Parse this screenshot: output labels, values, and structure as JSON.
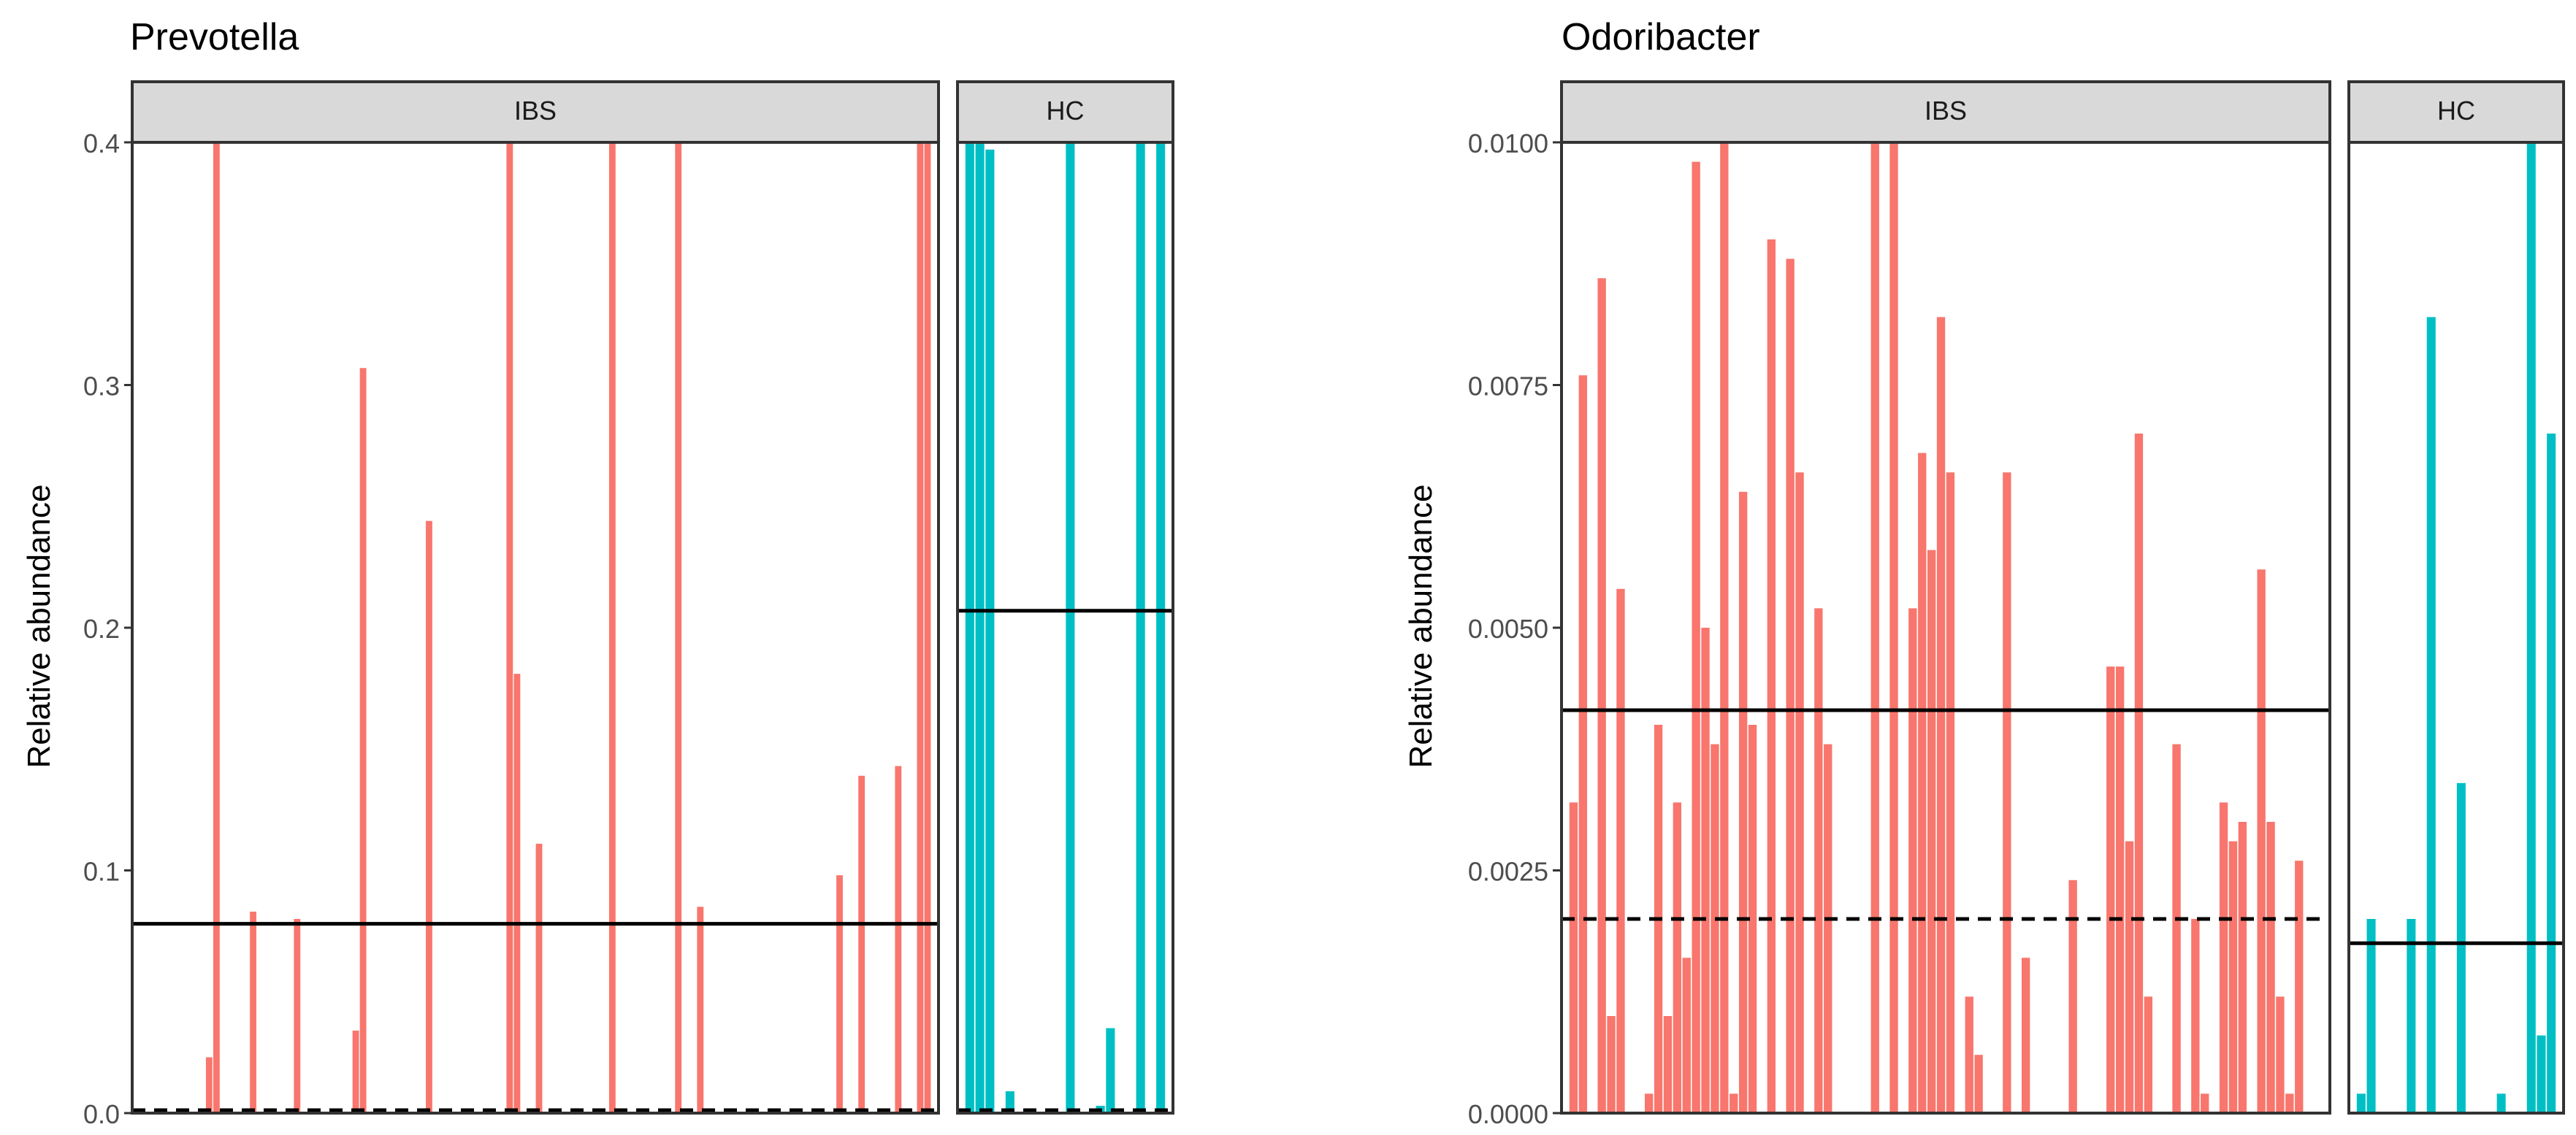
{
  "chart_data": [
    {
      "type": "bar",
      "title": "Prevotella",
      "ylabel": "Relative abundance",
      "xlabel": "",
      "ylim": [
        0,
        0.4
      ],
      "yticks": [
        "0.0",
        "0.1",
        "0.2",
        "0.3",
        "0.4"
      ],
      "facets": [
        {
          "label": "IBS",
          "color": "#F8766D",
          "n_slots": 108,
          "bars": [
            {
              "i": 9,
              "value": 0.023
            },
            {
              "i": 10,
              "value": 0.4
            },
            {
              "i": 15,
              "value": 0.083
            },
            {
              "i": 21,
              "value": 0.08
            },
            {
              "i": 29,
              "value": 0.034
            },
            {
              "i": 30,
              "value": 0.307
            },
            {
              "i": 39,
              "value": 0.244
            },
            {
              "i": 50,
              "value": 0.4
            },
            {
              "i": 51,
              "value": 0.181
            },
            {
              "i": 54,
              "value": 0.111
            },
            {
              "i": 59,
              "value": 0.002
            },
            {
              "i": 64,
              "value": 0.4
            },
            {
              "i": 73,
              "value": 0.4
            },
            {
              "i": 76,
              "value": 0.085
            },
            {
              "i": 80,
              "value": 0.001
            },
            {
              "i": 95,
              "value": 0.098
            },
            {
              "i": 98,
              "value": 0.139
            },
            {
              "i": 103,
              "value": 0.143
            },
            {
              "i": 106,
              "value": 0.4
            },
            {
              "i": 107,
              "value": 0.4
            }
          ],
          "mean_line": 0.078,
          "median_line": 0.0
        },
        {
          "label": "HC",
          "color": "#00BFC4",
          "n_slots": 20,
          "bars": [
            {
              "i": 0,
              "value": 0.4
            },
            {
              "i": 1,
              "value": 0.4
            },
            {
              "i": 2,
              "value": 0.397
            },
            {
              "i": 4,
              "value": 0.009
            },
            {
              "i": 10,
              "value": 0.4
            },
            {
              "i": 13,
              "value": 0.003
            },
            {
              "i": 14,
              "value": 0.035
            },
            {
              "i": 17,
              "value": 0.4
            },
            {
              "i": 19,
              "value": 0.4
            }
          ],
          "mean_line": 0.207,
          "median_line": 0.001
        }
      ]
    },
    {
      "type": "bar",
      "title": "Odoribacter",
      "ylabel": "Relative abundance",
      "xlabel": "",
      "ylim": [
        0,
        0.01
      ],
      "yticks": [
        "0.0000",
        "0.0025",
        "0.0050",
        "0.0075",
        "0.0100"
      ],
      "facets": [
        {
          "label": "IBS",
          "color": "#F8766D",
          "n_slots": 80,
          "bars": [
            {
              "i": 0,
              "value": 0.0032
            },
            {
              "i": 1,
              "value": 0.0076
            },
            {
              "i": 3,
              "value": 0.0086
            },
            {
              "i": 4,
              "value": 0.001
            },
            {
              "i": 5,
              "value": 0.0054
            },
            {
              "i": 8,
              "value": 0.0002
            },
            {
              "i": 9,
              "value": 0.004
            },
            {
              "i": 10,
              "value": 0.001
            },
            {
              "i": 11,
              "value": 0.0032
            },
            {
              "i": 12,
              "value": 0.0016
            },
            {
              "i": 13,
              "value": 0.0098
            },
            {
              "i": 14,
              "value": 0.005
            },
            {
              "i": 15,
              "value": 0.0038
            },
            {
              "i": 16,
              "value": 0.01
            },
            {
              "i": 17,
              "value": 0.0002
            },
            {
              "i": 18,
              "value": 0.0064
            },
            {
              "i": 19,
              "value": 0.004
            },
            {
              "i": 21,
              "value": 0.009
            },
            {
              "i": 23,
              "value": 0.0088
            },
            {
              "i": 24,
              "value": 0.0066
            },
            {
              "i": 26,
              "value": 0.0052
            },
            {
              "i": 27,
              "value": 0.0038
            },
            {
              "i": 32,
              "value": 0.01
            },
            {
              "i": 34,
              "value": 0.01
            },
            {
              "i": 36,
              "value": 0.0052
            },
            {
              "i": 37,
              "value": 0.0068
            },
            {
              "i": 38,
              "value": 0.0058
            },
            {
              "i": 39,
              "value": 0.0082
            },
            {
              "i": 40,
              "value": 0.0066
            },
            {
              "i": 42,
              "value": 0.0012
            },
            {
              "i": 43,
              "value": 0.0006
            },
            {
              "i": 46,
              "value": 0.0066
            },
            {
              "i": 48,
              "value": 0.0016
            },
            {
              "i": 53,
              "value": 0.0024
            },
            {
              "i": 57,
              "value": 0.0046
            },
            {
              "i": 58,
              "value": 0.0046
            },
            {
              "i": 59,
              "value": 0.0028
            },
            {
              "i": 60,
              "value": 0.007
            },
            {
              "i": 61,
              "value": 0.0012
            },
            {
              "i": 64,
              "value": 0.0038
            },
            {
              "i": 66,
              "value": 0.002
            },
            {
              "i": 67,
              "value": 0.0002
            },
            {
              "i": 69,
              "value": 0.0032
            },
            {
              "i": 70,
              "value": 0.0028
            },
            {
              "i": 71,
              "value": 0.003
            },
            {
              "i": 73,
              "value": 0.0056
            },
            {
              "i": 74,
              "value": 0.003
            },
            {
              "i": 75,
              "value": 0.0012
            },
            {
              "i": 76,
              "value": 0.0002
            },
            {
              "i": 77,
              "value": 0.0026
            }
          ],
          "mean_line": 0.00415,
          "median_line": 0.002
        },
        {
          "label": "HC",
          "color": "#00BFC4",
          "n_slots": 20,
          "bars": [
            {
              "i": 0,
              "value": 0.0002
            },
            {
              "i": 1,
              "value": 0.002
            },
            {
              "i": 5,
              "value": 0.002
            },
            {
              "i": 7,
              "value": 0.0082
            },
            {
              "i": 10,
              "value": 0.0034
            },
            {
              "i": 14,
              "value": 0.0002
            },
            {
              "i": 17,
              "value": 0.01
            },
            {
              "i": 18,
              "value": 0.0008
            },
            {
              "i": 19,
              "value": 0.007
            }
          ],
          "mean_line": 0.00175,
          "median_line": null
        }
      ]
    }
  ]
}
